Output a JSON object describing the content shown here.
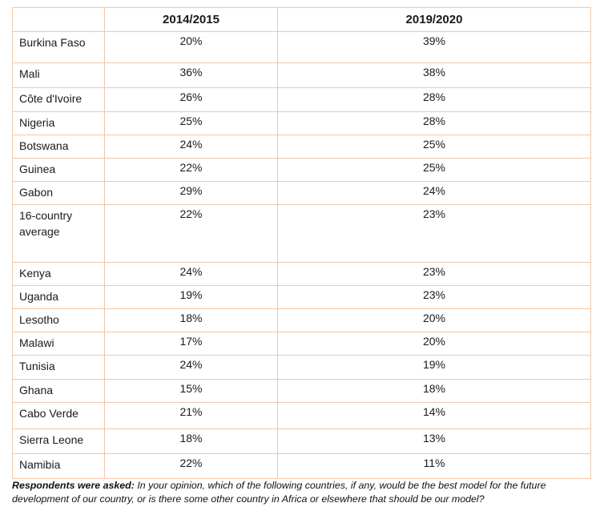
{
  "table": {
    "headers": [
      "",
      "2014/2015",
      "2019/2020"
    ],
    "rows": [
      {
        "country": "Burkina Faso",
        "v2015": "20%",
        "v2020": "39%"
      },
      {
        "country": "Mali",
        "v2015": "36%",
        "v2020": "38%"
      },
      {
        "country": "Côte d'Ivoire",
        "v2015": "26%",
        "v2020": "28%"
      },
      {
        "country": "Nigeria",
        "v2015": "25%",
        "v2020": "28%"
      },
      {
        "country": "Botswana",
        "v2015": "24%",
        "v2020": "25%"
      },
      {
        "country": "Guinea",
        "v2015": "22%",
        "v2020": "25%"
      },
      {
        "country": "Gabon",
        "v2015": "29%",
        "v2020": "24%"
      },
      {
        "country": "16-country average",
        "v2015": "22%",
        "v2020": "23%"
      },
      {
        "country": "Kenya",
        "v2015": "24%",
        "v2020": "23%"
      },
      {
        "country": "Uganda",
        "v2015": "19%",
        "v2020": "23%"
      },
      {
        "country": "Lesotho",
        "v2015": "18%",
        "v2020": "20%"
      },
      {
        "country": "Malawi",
        "v2015": "17%",
        "v2020": "20%"
      },
      {
        "country": "Tunisia",
        "v2015": "24%",
        "v2020": "19%"
      },
      {
        "country": "Ghana",
        "v2015": "15%",
        "v2020": "18%"
      },
      {
        "country": "Cabo Verde",
        "v2015": "21%",
        "v2020": "14%"
      },
      {
        "country": "Sierra Leone",
        "v2015": "18%",
        "v2020": "13%"
      },
      {
        "country": "Namibia",
        "v2015": "22%",
        "v2020": "11%"
      }
    ]
  },
  "note": {
    "lead": "Respondents were asked:",
    "text": " In your opinion, which of the following countries, if any, would be the best model for the future development of our country, or is there some other country in Africa or elsewhere that should be our model?"
  }
}
